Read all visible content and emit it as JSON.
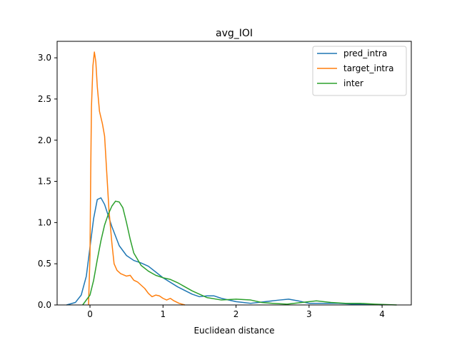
{
  "chart_data": {
    "type": "line",
    "title": "avg_IOI",
    "xlabel": "Euclidean distance",
    "ylabel": "",
    "xlim": [
      -0.45,
      4.4
    ],
    "ylim": [
      0,
      3.2
    ],
    "xticks": [
      0,
      1,
      2,
      3,
      4
    ],
    "yticks": [
      0.0,
      0.5,
      1.0,
      1.5,
      2.0,
      2.5,
      3.0
    ],
    "xtick_labels": [
      "0",
      "1",
      "2",
      "3",
      "4"
    ],
    "ytick_labels": [
      "0.0",
      "0.5",
      "1.0",
      "1.5",
      "2.0",
      "2.5",
      "3.0"
    ],
    "grid": false,
    "legend": "top-right",
    "series": [
      {
        "name": "pred_intra",
        "color": "#1f77b4",
        "points": [
          [
            -0.32,
            0.0
          ],
          [
            -0.2,
            0.03
          ],
          [
            -0.12,
            0.12
          ],
          [
            -0.05,
            0.35
          ],
          [
            0.0,
            0.7
          ],
          [
            0.05,
            1.05
          ],
          [
            0.1,
            1.28
          ],
          [
            0.15,
            1.3
          ],
          [
            0.2,
            1.22
          ],
          [
            0.3,
            0.95
          ],
          [
            0.4,
            0.72
          ],
          [
            0.5,
            0.6
          ],
          [
            0.6,
            0.54
          ],
          [
            0.7,
            0.51
          ],
          [
            0.8,
            0.47
          ],
          [
            0.9,
            0.4
          ],
          [
            1.0,
            0.33
          ],
          [
            1.2,
            0.22
          ],
          [
            1.4,
            0.13
          ],
          [
            1.5,
            0.1
          ],
          [
            1.6,
            0.11
          ],
          [
            1.7,
            0.11
          ],
          [
            1.8,
            0.08
          ],
          [
            2.0,
            0.04
          ],
          [
            2.2,
            0.02
          ],
          [
            2.4,
            0.04
          ],
          [
            2.6,
            0.06
          ],
          [
            2.72,
            0.07
          ],
          [
            2.85,
            0.05
          ],
          [
            3.0,
            0.02
          ],
          [
            3.2,
            0.02
          ],
          [
            3.4,
            0.02
          ],
          [
            3.6,
            0.01
          ],
          [
            3.8,
            0.01
          ],
          [
            4.0,
            0.0
          ]
        ]
      },
      {
        "name": "target_intra",
        "color": "#ff7f0e",
        "points": [
          [
            -0.02,
            0.0
          ],
          [
            0.0,
            0.6
          ],
          [
            0.01,
            1.6
          ],
          [
            0.02,
            2.4
          ],
          [
            0.04,
            2.9
          ],
          [
            0.06,
            3.07
          ],
          [
            0.08,
            2.95
          ],
          [
            0.1,
            2.65
          ],
          [
            0.13,
            2.35
          ],
          [
            0.17,
            2.2
          ],
          [
            0.2,
            2.05
          ],
          [
            0.23,
            1.6
          ],
          [
            0.26,
            1.15
          ],
          [
            0.3,
            0.75
          ],
          [
            0.33,
            0.5
          ],
          [
            0.37,
            0.42
          ],
          [
            0.42,
            0.38
          ],
          [
            0.5,
            0.35
          ],
          [
            0.55,
            0.36
          ],
          [
            0.6,
            0.3
          ],
          [
            0.65,
            0.28
          ],
          [
            0.7,
            0.24
          ],
          [
            0.75,
            0.2
          ],
          [
            0.8,
            0.14
          ],
          [
            0.85,
            0.1
          ],
          [
            0.9,
            0.12
          ],
          [
            0.95,
            0.11
          ],
          [
            1.0,
            0.08
          ],
          [
            1.05,
            0.06
          ],
          [
            1.1,
            0.08
          ],
          [
            1.15,
            0.05
          ],
          [
            1.22,
            0.02
          ],
          [
            1.3,
            0.0
          ]
        ]
      },
      {
        "name": "inter",
        "color": "#2ca02c",
        "points": [
          [
            -0.1,
            0.0
          ],
          [
            0.0,
            0.12
          ],
          [
            0.05,
            0.3
          ],
          [
            0.1,
            0.55
          ],
          [
            0.15,
            0.78
          ],
          [
            0.2,
            0.97
          ],
          [
            0.25,
            1.1
          ],
          [
            0.3,
            1.2
          ],
          [
            0.35,
            1.26
          ],
          [
            0.4,
            1.25
          ],
          [
            0.45,
            1.18
          ],
          [
            0.5,
            1.0
          ],
          [
            0.55,
            0.8
          ],
          [
            0.6,
            0.63
          ],
          [
            0.7,
            0.48
          ],
          [
            0.8,
            0.41
          ],
          [
            0.9,
            0.36
          ],
          [
            1.0,
            0.33
          ],
          [
            1.1,
            0.31
          ],
          [
            1.2,
            0.27
          ],
          [
            1.3,
            0.22
          ],
          [
            1.4,
            0.17
          ],
          [
            1.5,
            0.13
          ],
          [
            1.6,
            0.09
          ],
          [
            1.8,
            0.06
          ],
          [
            2.0,
            0.07
          ],
          [
            2.2,
            0.06
          ],
          [
            2.35,
            0.03
          ],
          [
            2.5,
            0.02
          ],
          [
            2.7,
            0.01
          ],
          [
            2.9,
            0.03
          ],
          [
            3.1,
            0.05
          ],
          [
            3.3,
            0.03
          ],
          [
            3.5,
            0.02
          ],
          [
            3.7,
            0.02
          ],
          [
            3.9,
            0.01
          ],
          [
            4.2,
            0.0
          ]
        ]
      }
    ]
  }
}
